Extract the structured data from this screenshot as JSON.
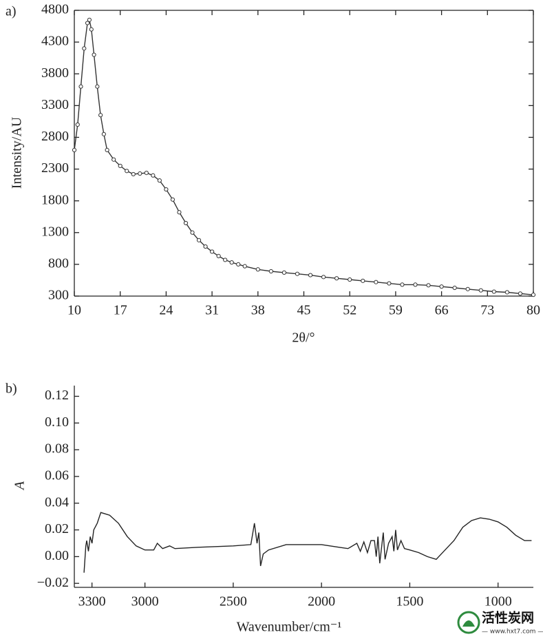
{
  "chart_data": [
    {
      "type": "line",
      "label": "a)",
      "x_label": "2θ/°",
      "y_label": "Intensity/AU",
      "x": [
        10,
        10.5,
        11,
        11.5,
        12,
        12.3,
        12.6,
        13,
        13.5,
        14,
        14.5,
        15,
        16,
        17,
        18,
        19,
        20,
        21,
        22,
        23,
        24,
        25,
        26,
        27,
        28,
        29,
        30,
        31,
        32,
        33,
        34,
        35,
        36,
        38,
        40,
        42,
        44,
        46,
        48,
        50,
        52,
        54,
        56,
        58,
        60,
        62,
        64,
        66,
        68,
        70,
        72,
        74,
        76,
        78,
        80
      ],
      "values": [
        2600,
        3000,
        3600,
        4200,
        4600,
        4650,
        4500,
        4100,
        3600,
        3150,
        2850,
        2600,
        2450,
        2350,
        2270,
        2220,
        2230,
        2240,
        2200,
        2120,
        1980,
        1820,
        1620,
        1450,
        1300,
        1180,
        1080,
        1000,
        930,
        870,
        830,
        800,
        770,
        720,
        690,
        670,
        650,
        630,
        600,
        580,
        560,
        540,
        520,
        500,
        480,
        480,
        470,
        450,
        430,
        410,
        390,
        370,
        360,
        340,
        320
      ],
      "color": "#333333",
      "markers": true,
      "frame": true,
      "xlim": [
        10,
        80
      ],
      "xticks": [
        10,
        17,
        24,
        31,
        38,
        45,
        52,
        59,
        66,
        73,
        80
      ],
      "ylim": [
        300,
        4800
      ],
      "yticks": [
        300,
        800,
        1300,
        1800,
        2300,
        2800,
        3300,
        3800,
        4300,
        4800
      ]
    },
    {
      "type": "line",
      "label": "b)",
      "x_label": "Wavenumber/cm⁻¹",
      "y_label": "A",
      "x": [
        3345,
        3335,
        3330,
        3320,
        3310,
        3300,
        3290,
        3270,
        3250,
        3200,
        3150,
        3100,
        3050,
        3000,
        2950,
        2930,
        2900,
        2860,
        2830,
        2700,
        2500,
        2400,
        2380,
        2365,
        2355,
        2345,
        2330,
        2300,
        2200,
        2000,
        1900,
        1850,
        1800,
        1780,
        1760,
        1740,
        1720,
        1700,
        1690,
        1680,
        1670,
        1650,
        1640,
        1620,
        1600,
        1590,
        1580,
        1570,
        1550,
        1530,
        1500,
        1450,
        1400,
        1350,
        1300,
        1250,
        1200,
        1150,
        1100,
        1050,
        1000,
        950,
        900,
        850,
        810
      ],
      "values": [
        -0.012,
        0.008,
        0.012,
        0.004,
        0.015,
        0.01,
        0.02,
        0.025,
        0.033,
        0.031,
        0.025,
        0.015,
        0.008,
        0.005,
        0.005,
        0.01,
        0.006,
        0.008,
        0.006,
        0.007,
        0.008,
        0.009,
        0.025,
        0.01,
        0.018,
        -0.007,
        0.002,
        0.005,
        0.009,
        0.009,
        0.007,
        0.006,
        0.01,
        0.004,
        0.011,
        0.003,
        0.012,
        0.012,
        0.0,
        0.015,
        -0.005,
        0.018,
        -0.002,
        0.01,
        0.015,
        0.004,
        0.02,
        0.005,
        0.012,
        0.006,
        0.005,
        0.003,
        0.0,
        -0.002,
        0.005,
        0.012,
        0.022,
        0.027,
        0.029,
        0.028,
        0.026,
        0.022,
        0.016,
        0.012,
        0.012
      ],
      "color": "#222222",
      "markers": false,
      "frame": false,
      "xlim": [
        3400,
        800
      ],
      "xticks": [
        3300,
        3000,
        2500,
        2000,
        1500,
        1000
      ],
      "ylim": [
        -0.023,
        0.128
      ],
      "yticks": [
        {
          "value": -0.02,
          "label": "−0.02"
        },
        {
          "value": 0,
          "label": "0.00"
        },
        {
          "value": 0.02,
          "label": "0.02"
        },
        {
          "value": 0.04,
          "label": "0.04"
        },
        {
          "value": 0.06,
          "label": "0.06"
        },
        {
          "value": 0.08,
          "label": "0.08"
        },
        {
          "value": 0.1,
          "label": "0.10"
        },
        {
          "value": 0.12,
          "label": "0.12"
        }
      ]
    }
  ],
  "watermark": {
    "name": "活性炭网",
    "url": "— www.hxt7.com —"
  }
}
